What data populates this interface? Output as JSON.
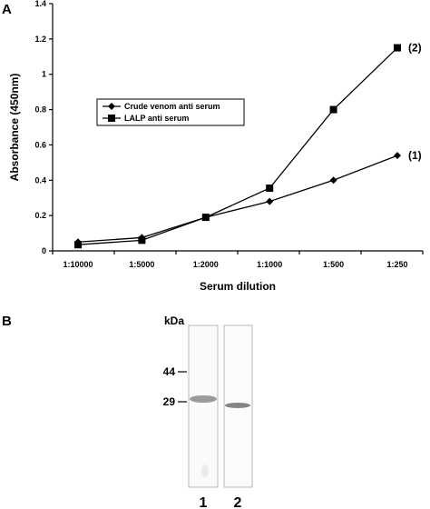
{
  "panel_a": {
    "letter": "A"
  },
  "panel_b": {
    "letter": "B",
    "unit_label": "kDa",
    "markers": [
      {
        "label": "44",
        "kda": 44
      },
      {
        "label": "29",
        "kda": 29
      }
    ],
    "lanes": [
      {
        "label": "1"
      },
      {
        "label": "2"
      }
    ]
  },
  "chart_data": {
    "type": "line",
    "categories": [
      "1:10000",
      "1:5000",
      "1:2000",
      "1:1000",
      "1:500",
      "1:250"
    ],
    "xlabel": "Serum dilution",
    "ylabel": "Absorbance (450nm)",
    "ylim": [
      0,
      1.4
    ],
    "yticks": [
      {
        "label": "0",
        "value": 0
      },
      {
        "label": "0.2",
        "value": 0.2
      },
      {
        "label": "0.4",
        "value": 0.4
      },
      {
        "label": "0.6",
        "value": 0.6
      },
      {
        "label": "0.8",
        "value": 0.8
      },
      {
        "label": "1",
        "value": 1.0
      },
      {
        "label": "1.2",
        "value": 1.2
      },
      {
        "label": "1.4",
        "value": 1.4
      }
    ],
    "grid": false,
    "legend_placement": "middle-left",
    "series": [
      {
        "name": "Crude venom anti serum",
        "marker": "diamond",
        "end_label": "(1)",
        "values": [
          0.05,
          0.075,
          0.19,
          0.28,
          0.4,
          0.54
        ]
      },
      {
        "name": "LALP anti serum",
        "marker": "square",
        "end_label": "(2)",
        "values": [
          0.035,
          0.06,
          0.19,
          0.355,
          0.8,
          1.15
        ]
      }
    ]
  }
}
